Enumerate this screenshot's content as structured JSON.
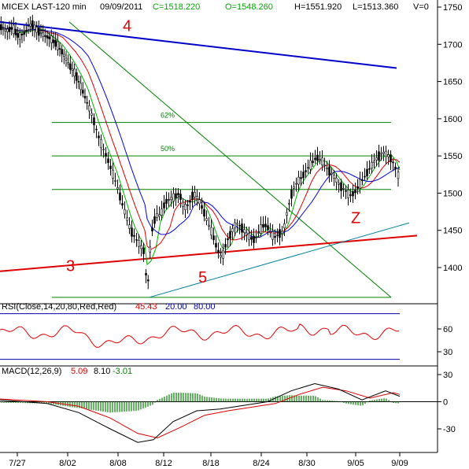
{
  "header": {
    "symbol": "MICEX LAST-120 min",
    "date": "09/09/2011",
    "close": "C=1518.220",
    "open": "O=1548.260",
    "high": "H=1551.920",
    "low": "L=1513.360",
    "volume": "V=0"
  },
  "colors": {
    "close_text": "#00aa00",
    "open_text": "#00aa00",
    "candles": "#000000",
    "ma_fast": "#00b000",
    "ma_mid": "#e00000",
    "ma_slow": "#0000e0",
    "line4": "#0000cc",
    "line3": "#e00000",
    "line5": "#0080a0",
    "fib": "#008000",
    "rsi": "#e00000",
    "rsi_levels": "#0000aa",
    "macd_line": "#000000",
    "macd_signal": "#e00000",
    "macd_hist": "#008000"
  },
  "chart_data": [
    {
      "type": "candlestick",
      "title": "MICEX LAST-120 min",
      "x_tick_labels": [
        "7/27",
        "8/02",
        "8/08",
        "8/12",
        "8/18",
        "8/24",
        "8/30",
        "9/05",
        "9/09"
      ],
      "y_ticks": [
        1400,
        1450,
        1500,
        1550,
        1600,
        1650,
        1700,
        1750
      ],
      "ylim": [
        1345,
        1760
      ],
      "grid": false,
      "close_path": [
        [
          0,
          1724
        ],
        [
          8,
          1718
        ],
        [
          16,
          1722
        ],
        [
          24,
          1710
        ],
        [
          32,
          1716
        ],
        [
          40,
          1728
        ],
        [
          48,
          1718
        ],
        [
          56,
          1712
        ],
        [
          64,
          1708
        ],
        [
          72,
          1700
        ],
        [
          80,
          1688
        ],
        [
          88,
          1672
        ],
        [
          96,
          1660
        ],
        [
          104,
          1640
        ],
        [
          112,
          1618
        ],
        [
          118,
          1602
        ],
        [
          124,
          1580
        ],
        [
          130,
          1562
        ],
        [
          136,
          1548
        ],
        [
          142,
          1530
        ],
        [
          148,
          1512
        ],
        [
          154,
          1490
        ],
        [
          160,
          1470
        ],
        [
          166,
          1450
        ],
        [
          172,
          1440
        ],
        [
          178,
          1430
        ],
        [
          184,
          1420
        ],
        [
          187,
          1362
        ],
        [
          192,
          1445
        ],
        [
          198,
          1470
        ],
        [
          204,
          1470
        ],
        [
          210,
          1488
        ],
        [
          216,
          1492
        ],
        [
          222,
          1495
        ],
        [
          228,
          1500
        ],
        [
          234,
          1480
        ],
        [
          240,
          1485
        ],
        [
          246,
          1500
        ],
        [
          252,
          1492
        ],
        [
          258,
          1478
        ],
        [
          264,
          1460
        ],
        [
          270,
          1445
        ],
        [
          276,
          1425
        ],
        [
          282,
          1412
        ],
        [
          288,
          1435
        ],
        [
          294,
          1447
        ],
        [
          300,
          1460
        ],
        [
          306,
          1455
        ],
        [
          312,
          1447
        ],
        [
          318,
          1440
        ],
        [
          324,
          1437
        ],
        [
          330,
          1450
        ],
        [
          336,
          1458
        ],
        [
          342,
          1452
        ],
        [
          348,
          1440
        ],
        [
          354,
          1445
        ],
        [
          360,
          1448
        ],
        [
          366,
          1480
        ],
        [
          372,
          1505
        ],
        [
          378,
          1515
        ],
        [
          384,
          1522
        ],
        [
          390,
          1532
        ],
        [
          396,
          1540
        ],
        [
          402,
          1548
        ],
        [
          408,
          1545
        ],
        [
          414,
          1535
        ],
        [
          420,
          1528
        ],
        [
          426,
          1520
        ],
        [
          432,
          1510
        ],
        [
          438,
          1505
        ],
        [
          444,
          1497
        ],
        [
          450,
          1500
        ],
        [
          456,
          1510
        ],
        [
          462,
          1520
        ],
        [
          468,
          1530
        ],
        [
          474,
          1540
        ],
        [
          480,
          1548
        ],
        [
          486,
          1555
        ],
        [
          492,
          1552
        ],
        [
          498,
          1545
        ],
        [
          504,
          1530
        ],
        [
          508,
          1518
        ]
      ],
      "lines": [
        {
          "name": "4",
          "from": [
            0,
            1730
          ],
          "to": [
            504,
            1668
          ]
        },
        {
          "name": "3",
          "from": [
            0,
            1395
          ],
          "to": [
            530,
            1443
          ]
        },
        {
          "name": "5",
          "from": [
            190,
            1360
          ],
          "to": [
            520,
            1460
          ]
        }
      ],
      "fib_levels": [
        {
          "label": "62%",
          "value": 1595
        },
        {
          "label": "50%",
          "value": 1550
        },
        {
          "label": "",
          "value": 1505
        },
        {
          "label": "",
          "value": 1360
        }
      ],
      "annotations": [
        "4",
        "3",
        "5",
        "Z",
        "62%",
        "50%"
      ]
    },
    {
      "type": "line",
      "title": "RSI(Close,14,20,80,Red,Red)",
      "values_text": [
        "45.43",
        "20.00",
        "80.00"
      ],
      "y_ticks": [
        30,
        60
      ],
      "levels": [
        20,
        80
      ],
      "ylim": [
        15,
        90
      ]
    },
    {
      "type": "line",
      "title": "MACD(12,26,9)",
      "values_text": [
        "5.09",
        "8.10",
        "-3.01"
      ],
      "y_ticks": [
        -30,
        0,
        30
      ],
      "ylim": [
        -45,
        40
      ],
      "series": [
        {
          "values": [
            [
              0,
              2
            ],
            [
              60,
              -2
            ],
            [
              100,
              -12
            ],
            [
              140,
              -30
            ],
            [
              175,
              -45
            ],
            [
              195,
              -42
            ],
            [
              220,
              -22
            ],
            [
              250,
              -10
            ],
            [
              280,
              -8
            ],
            [
              310,
              -4
            ],
            [
              340,
              0
            ],
            [
              370,
              12
            ],
            [
              400,
              20
            ],
            [
              430,
              14
            ],
            [
              460,
              2
            ],
            [
              490,
              12
            ],
            [
              508,
              6
            ]
          ]
        },
        {
          "values": [
            [
              0,
              3
            ],
            [
              60,
              0
            ],
            [
              100,
              -5
            ],
            [
              140,
              -18
            ],
            [
              175,
              -35
            ],
            [
              200,
              -40
            ],
            [
              230,
              -28
            ],
            [
              260,
              -15
            ],
            [
              290,
              -10
            ],
            [
              320,
              -6
            ],
            [
              350,
              -2
            ],
            [
              380,
              8
            ],
            [
              410,
              16
            ],
            [
              440,
              12
            ],
            [
              470,
              4
            ],
            [
              500,
              10
            ],
            [
              508,
              8
            ]
          ]
        }
      ]
    }
  ]
}
